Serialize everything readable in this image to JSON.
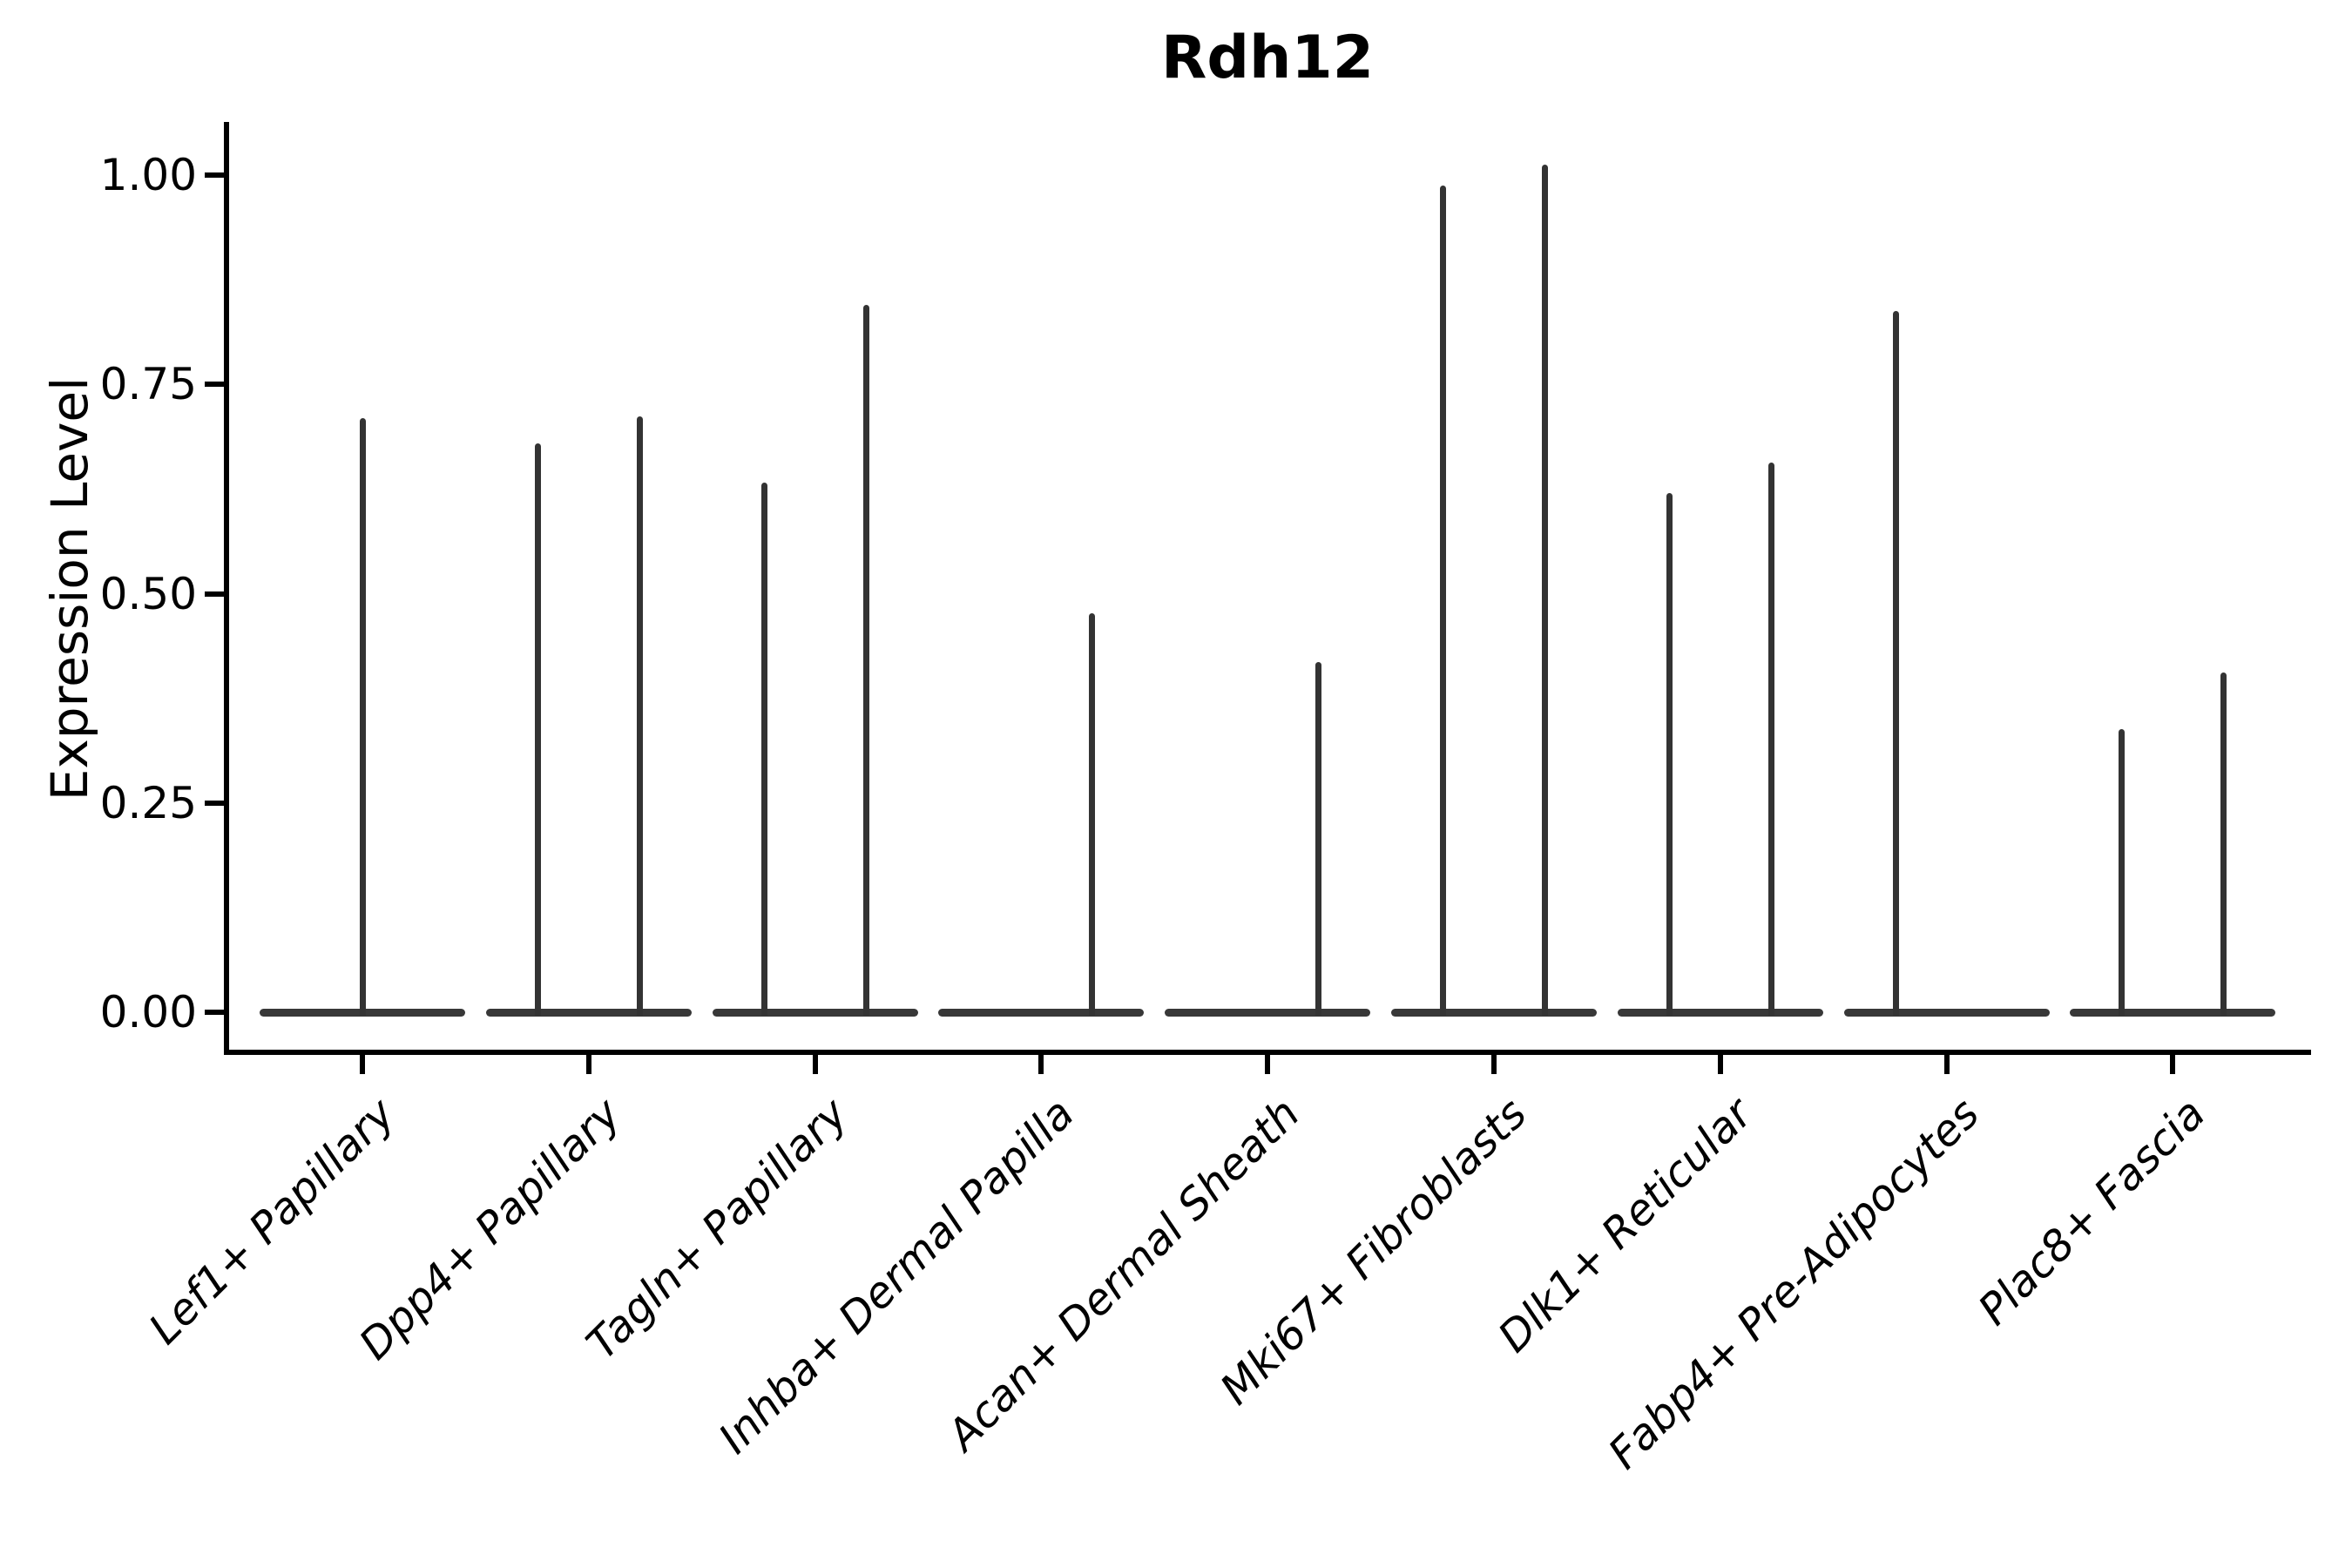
{
  "chart_data": {
    "type": "violin",
    "title": "Rdh12",
    "xlabel": "",
    "ylabel": "Expression Level",
    "legend_position": "none",
    "grid": false,
    "background": "#ffffff",
    "ylim": [
      -0.05,
      1.06
    ],
    "yticks": [
      {
        "value": 0.0,
        "label": "0.00"
      },
      {
        "value": 0.25,
        "label": "0.25"
      },
      {
        "value": 0.5,
        "label": "0.50"
      },
      {
        "value": 0.75,
        "label": "0.75"
      },
      {
        "value": 1.0,
        "label": "1.00"
      }
    ],
    "categories": [
      "Lef1+ Papillary",
      "Dpp4+ Papillary",
      "Tagln+ Papillary",
      "Inhba+ Dermal Papilla",
      "Acan+ Dermal Sheath",
      "Mki67+ Fibroblasts",
      "Dlk1+ Reticular",
      "Fabp4+ Pre-Adipocytes",
      "Plac8+ Fascia"
    ],
    "violins": [
      {
        "category": "Lef1+ Papillary",
        "base_width": 0.9,
        "baseline": 0,
        "spikes": [
          {
            "offset": 0,
            "max": 0.71
          }
        ]
      },
      {
        "category": "Dpp4+ Papillary",
        "base_width": 0.9,
        "baseline": 0,
        "spikes": [
          {
            "offset": -0.225,
            "max": 0.68
          },
          {
            "offset": 0.225,
            "max": 0.712
          }
        ]
      },
      {
        "category": "Tagln+ Papillary",
        "base_width": 0.9,
        "baseline": 0,
        "spikes": [
          {
            "offset": -0.225,
            "max": 0.633
          },
          {
            "offset": 0.225,
            "max": 0.845
          }
        ]
      },
      {
        "category": "Inhba+ Dermal Papilla",
        "base_width": 0.9,
        "baseline": 0,
        "spikes": [
          {
            "offset": 0.225,
            "max": 0.477
          }
        ]
      },
      {
        "category": "Acan+ Dermal Sheath",
        "base_width": 0.9,
        "baseline": 0,
        "spikes": [
          {
            "offset": 0.225,
            "max": 0.418
          }
        ]
      },
      {
        "category": "Mki67+ Fibroblasts",
        "base_width": 0.9,
        "baseline": 0,
        "spikes": [
          {
            "offset": -0.225,
            "max": 0.988
          },
          {
            "offset": 0.225,
            "max": 1.012
          }
        ]
      },
      {
        "category": "Dlk1+ Reticular",
        "base_width": 0.9,
        "baseline": 0,
        "spikes": [
          {
            "offset": -0.225,
            "max": 0.62
          },
          {
            "offset": 0.225,
            "max": 0.657
          }
        ]
      },
      {
        "category": "Fabp4+ Pre-Adipocytes",
        "base_width": 0.9,
        "baseline": 0,
        "spikes": [
          {
            "offset": -0.225,
            "max": 0.838
          }
        ]
      },
      {
        "category": "Plac8+ Fascia",
        "base_width": 0.9,
        "baseline": 0,
        "spikes": [
          {
            "offset": -0.225,
            "max": 0.338
          },
          {
            "offset": 0.225,
            "max": 0.406
          }
        ]
      }
    ],
    "colors": {
      "violin": "#333333",
      "axis": "#000000",
      "text": "#000000"
    }
  }
}
